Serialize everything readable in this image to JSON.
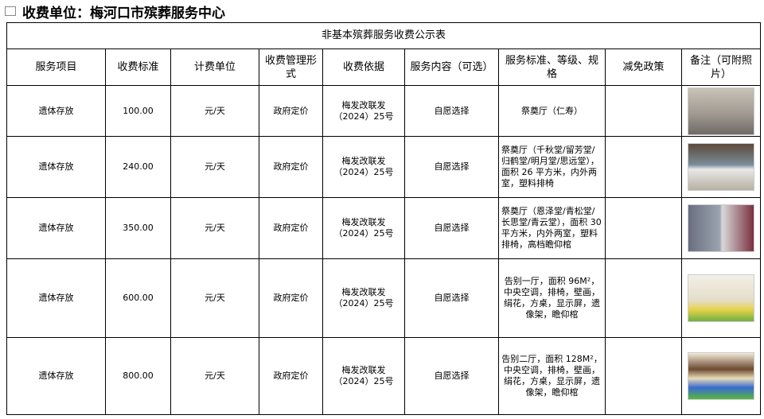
{
  "unit_label": "收费单位：梅河口市殡葬服务中心",
  "table_title": "非基本殡葬服务收费公示表",
  "headers": [
    "服务项目",
    "收费标准",
    "计费单位",
    "收费管理形式",
    "收费依据",
    "服务内容（可选）",
    "服务标准、等级、规格",
    "减免政策",
    "备注（可附照片）"
  ],
  "rows": [
    {
      "item": "遗体存放",
      "price": "100.00",
      "unit": "元/天",
      "mgmt": "政府定价",
      "basis": "梅发改联发（2024）25号",
      "content": "自愿选择",
      "spec": "祭奠厅（仁寿）",
      "relief": "",
      "photo": "hall-photo"
    },
    {
      "item": "遗体存放",
      "price": "240.00",
      "unit": "元/天",
      "mgmt": "政府定价",
      "basis": "梅发改联发（2024）25号",
      "content": "自愿选择",
      "spec": "祭奠厅（千秋堂/留芳堂/归鹤堂/明月堂/思远堂），面积 26 平方米，内外两室，塑料排椅",
      "relief": "",
      "photo": "hall-photo"
    },
    {
      "item": "遗体存放",
      "price": "350.00",
      "unit": "元/天",
      "mgmt": "政府定价",
      "basis": "梅发改联发（2024）25号",
      "content": "自愿选择",
      "spec": "祭奠厅（恩泽堂/青松堂/长思堂/青云堂），面积 30 平方米，内外两室，塑料排椅，高档瞻仰棺",
      "relief": "",
      "photo": "hall-photo"
    },
    {
      "item": "遗体存放",
      "price": "600.00",
      "unit": "元/天",
      "mgmt": "政府定价",
      "basis": "梅发改联发（2024）25号",
      "content": "自愿选择",
      "spec": "告别一厅，面积 96M²，中央空调，排椅，壁画，绢花，方桌，显示屏，遗像架，瞻仰棺",
      "relief": "",
      "photo": "hall-photo"
    },
    {
      "item": "遗体存放",
      "price": "800.00",
      "unit": "元/天",
      "mgmt": "政府定价",
      "basis": "梅发改联发（2024）25号",
      "content": "自愿选择",
      "spec": "告别二厅，面积 128M²，中央空调，排椅，壁画，绢花，方桌，显示屏，遗像架，瞻仰棺",
      "relief": "",
      "photo": "hall-photo"
    }
  ]
}
